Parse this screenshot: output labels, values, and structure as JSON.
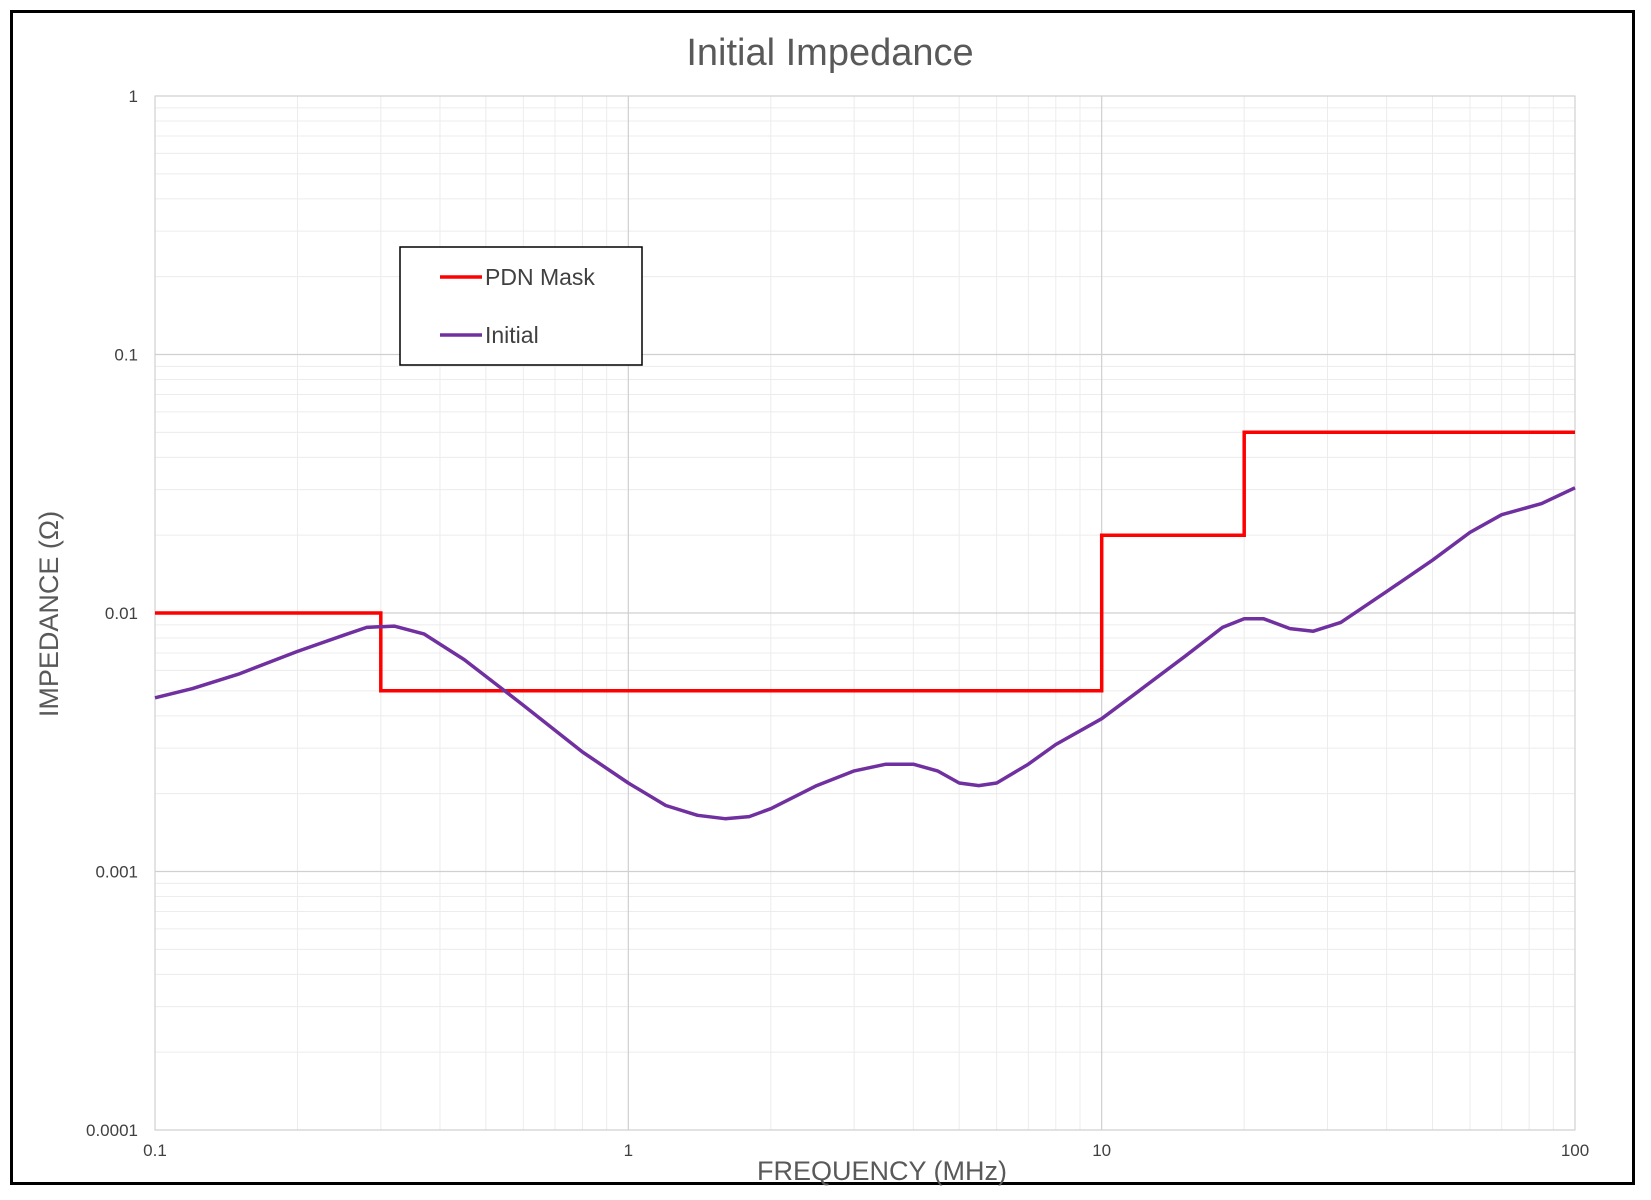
{
  "chart_data": {
    "type": "line",
    "title": "Initial Impedance",
    "xlabel": "FREQUENCY (MHz)",
    "ylabel": "IMPEDANCE (Ω)",
    "x_scale": "log",
    "y_scale": "log",
    "xlim": [
      0.1,
      100
    ],
    "ylim": [
      0.0001,
      1
    ],
    "x_ticks": [
      0.1,
      1,
      10,
      100
    ],
    "x_tick_labels": [
      "0.1",
      "1",
      "10",
      "100"
    ],
    "y_ticks": [
      0.0001,
      0.001,
      0.01,
      0.1,
      1
    ],
    "y_tick_labels": [
      "0.0001",
      "0.001",
      "0.01",
      "0.1",
      "1"
    ],
    "grid": true,
    "legend_position": "upper-left",
    "series": [
      {
        "name": "PDN Mask",
        "color": "#ff0000",
        "x": [
          0.1,
          0.3,
          0.3,
          10,
          10,
          20,
          20,
          100
        ],
        "y": [
          0.01,
          0.01,
          0.005,
          0.005,
          0.02,
          0.02,
          0.05,
          0.05
        ]
      },
      {
        "name": "Initial",
        "color": "#7030a0",
        "x": [
          0.1,
          0.12,
          0.15,
          0.2,
          0.25,
          0.28,
          0.32,
          0.37,
          0.45,
          0.6,
          0.8,
          1.0,
          1.2,
          1.4,
          1.6,
          1.8,
          2.0,
          2.5,
          3.0,
          3.5,
          4.0,
          4.5,
          5.0,
          5.5,
          6.0,
          7.0,
          8.0,
          10,
          12,
          15,
          18,
          20,
          22,
          25,
          28,
          32,
          40,
          50,
          60,
          70,
          85,
          100
        ],
        "y": [
          0.0047,
          0.0051,
          0.0058,
          0.0071,
          0.0082,
          0.0088,
          0.0089,
          0.0083,
          0.0066,
          0.0044,
          0.0029,
          0.0022,
          0.0018,
          0.00165,
          0.0016,
          0.00163,
          0.00175,
          0.00215,
          0.00245,
          0.0026,
          0.0026,
          0.00245,
          0.0022,
          0.00215,
          0.0022,
          0.0026,
          0.0031,
          0.0039,
          0.005,
          0.0068,
          0.0088,
          0.0095,
          0.0095,
          0.0087,
          0.0085,
          0.0092,
          0.0121,
          0.016,
          0.0205,
          0.024,
          0.0265,
          0.0305
        ]
      }
    ]
  }
}
